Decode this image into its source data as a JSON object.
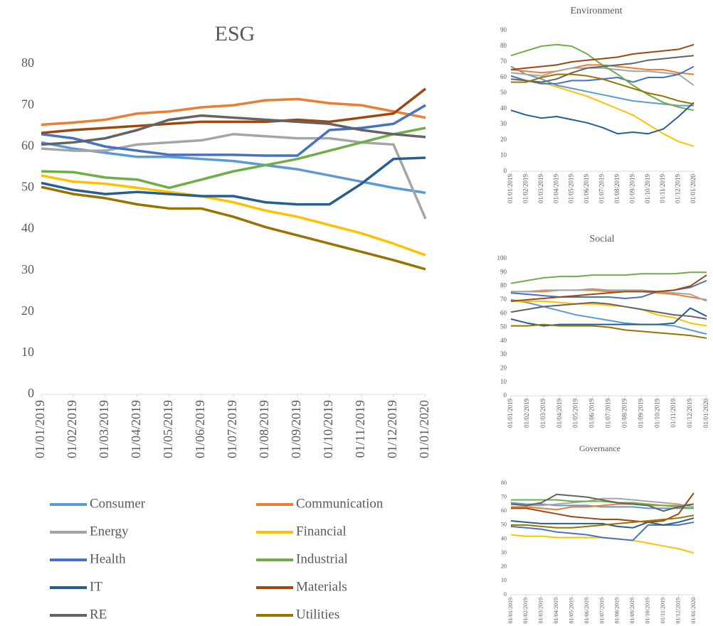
{
  "chart_data": [
    {
      "type": "line",
      "title": "ESG",
      "categories": [
        "01/01/2019",
        "01/02/2019",
        "01/03/2019",
        "01/04/2019",
        "01/05/2019",
        "01/06/2019",
        "01/07/2019",
        "01/08/2019",
        "01/09/2019",
        "01/10/2019",
        "01/11/2019",
        "01/12/2019",
        "01/01/2020"
      ],
      "ylim": [
        0,
        80
      ],
      "yticks": [
        0,
        10,
        20,
        30,
        40,
        50,
        60,
        70,
        80
      ],
      "series": [
        {
          "name": "Consumer",
          "color": "#5b9bd5",
          "values": [
            61,
            59.5,
            58.5,
            57.5,
            57.5,
            57,
            56.5,
            55.5,
            54.5,
            53,
            51.5,
            50,
            48.8
          ]
        },
        {
          "name": "Communication",
          "color": "#ed7d31",
          "values": [
            65.3,
            65.8,
            66.5,
            68,
            68.5,
            69.5,
            70,
            71.2,
            71.5,
            70.5,
            70,
            68.5,
            67
          ]
        },
        {
          "name": "Energy",
          "color": "#a5a5a5",
          "values": [
            59.5,
            59,
            59,
            60.5,
            61,
            61.5,
            63,
            62.5,
            62,
            62,
            61,
            60.5,
            42.5
          ]
        },
        {
          "name": "Financial",
          "color": "#ffc000",
          "values": [
            53,
            51.5,
            51,
            50,
            49,
            48,
            46.5,
            44.5,
            43,
            41,
            39,
            36.5,
            33.7
          ]
        },
        {
          "name": "Health",
          "color": "#4472c4",
          "values": [
            63,
            62,
            60,
            59,
            58,
            58,
            58,
            57.8,
            57.8,
            64,
            64.5,
            65.5,
            70
          ]
        },
        {
          "name": "Industrial",
          "color": "#70ad47",
          "values": [
            54,
            53.8,
            52.5,
            52,
            50,
            52,
            54,
            55.5,
            57,
            59,
            61,
            63,
            64.5
          ]
        },
        {
          "name": "IT",
          "color": "#255e91",
          "values": [
            51.2,
            49.5,
            48.5,
            49,
            48.5,
            48,
            48,
            46.5,
            46,
            46,
            51,
            57,
            57.3
          ]
        },
        {
          "name": "Materials",
          "color": "#9e480e",
          "values": [
            63.3,
            64,
            64.5,
            65,
            65.5,
            66,
            66,
            66,
            66.5,
            66,
            67,
            68,
            74
          ]
        },
        {
          "name": "RE",
          "color": "#636363",
          "values": [
            60.5,
            61,
            62,
            64,
            66.5,
            67.5,
            67,
            66.5,
            66,
            65.5,
            64,
            63,
            62.3
          ]
        },
        {
          "name": "Utilities",
          "color": "#997300",
          "values": [
            50.2,
            48.5,
            47.5,
            46,
            45,
            45,
            43,
            40.5,
            38.5,
            36.5,
            34.5,
            32.5,
            30.3
          ]
        }
      ]
    },
    {
      "type": "line",
      "title": "Environment",
      "categories": [
        "01/01/2019",
        "01/02/2019",
        "01/03/2019",
        "01/04/2019",
        "01/05/2019",
        "01/06/2019",
        "01/07/2019",
        "01/08/2019",
        "01/09/2019",
        "01/10/2019",
        "01/11/2019",
        "01/12/2019",
        "01/01/2020"
      ],
      "ylim": [
        0,
        90
      ],
      "yticks": [
        0,
        10,
        20,
        30,
        40,
        50,
        60,
        70,
        80,
        90
      ],
      "series": [
        {
          "color": "#5b9bd5",
          "values": [
            67,
            62,
            59,
            55,
            53,
            51,
            49,
            47,
            45,
            44,
            43,
            42,
            42
          ]
        },
        {
          "color": "#ed7d31",
          "values": [
            65,
            64,
            63,
            64,
            66,
            68,
            68,
            67,
            66,
            65,
            65,
            63,
            62
          ]
        },
        {
          "color": "#a5a5a5",
          "values": [
            63,
            62,
            61,
            64,
            66,
            66,
            66,
            65,
            64,
            64,
            63,
            62,
            55
          ]
        },
        {
          "color": "#ffc000",
          "values": [
            61,
            58,
            57,
            54,
            51,
            48,
            44,
            40,
            36,
            30,
            24,
            19,
            16
          ]
        },
        {
          "color": "#4472c4",
          "values": [
            61,
            58,
            56,
            56,
            58,
            58,
            59,
            60,
            57,
            60,
            60,
            62,
            67
          ]
        },
        {
          "color": "#70ad47",
          "values": [
            74,
            77,
            80,
            81,
            80,
            75,
            68,
            62,
            55,
            49,
            44,
            41,
            39
          ]
        },
        {
          "color": "#255e91",
          "values": [
            39,
            36,
            34,
            35,
            33,
            31,
            28,
            24,
            25,
            24,
            27,
            35,
            44
          ]
        },
        {
          "color": "#9e480e",
          "values": [
            65,
            66,
            67,
            68,
            70,
            71,
            72,
            73,
            75,
            76,
            77,
            78,
            81
          ]
        },
        {
          "color": "#636363",
          "values": [
            59,
            58,
            57,
            59,
            63,
            66,
            67,
            68,
            69,
            71,
            72,
            73,
            74
          ]
        },
        {
          "color": "#997300",
          "values": [
            57,
            57,
            60,
            62,
            62,
            61,
            59,
            56,
            53,
            50,
            48,
            45,
            43
          ]
        }
      ]
    },
    {
      "type": "line",
      "title": "Social",
      "categories": [
        "01/01/2019",
        "01/02/2019",
        "01/03/2019",
        "01/04/2019",
        "01/05/2019",
        "01/06/2019",
        "01/07/2019",
        "01/08/2019",
        "01/09/2019",
        "01/10/2019",
        "01/11/2019",
        "01/12/2019",
        "01/01/2020"
      ],
      "ylim": [
        0,
        100
      ],
      "yticks": [
        0,
        10,
        20,
        30,
        40,
        50,
        60,
        70,
        80,
        90,
        100
      ],
      "series": [
        {
          "color": "#5b9bd5",
          "values": [
            70,
            68,
            65,
            62,
            59,
            57,
            55,
            53,
            52,
            52,
            51,
            48,
            45
          ]
        },
        {
          "color": "#ed7d31",
          "values": [
            76,
            76,
            76,
            77,
            77,
            77,
            76,
            76,
            76,
            75,
            74,
            72,
            70
          ]
        },
        {
          "color": "#a5a5a5",
          "values": [
            76,
            76,
            77,
            77,
            77,
            78,
            77,
            77,
            77,
            76,
            75,
            74,
            69
          ]
        },
        {
          "color": "#ffc000",
          "values": [
            69,
            69,
            69,
            68,
            67,
            67,
            66,
            65,
            63,
            59,
            57,
            53,
            51
          ]
        },
        {
          "color": "#4472c4",
          "values": [
            75,
            74,
            73,
            72,
            72,
            72,
            72,
            71,
            72,
            76,
            77,
            79,
            84
          ]
        },
        {
          "color": "#70ad47",
          "values": [
            82,
            84,
            86,
            87,
            87,
            88,
            88,
            88,
            89,
            89,
            89,
            90,
            90
          ]
        },
        {
          "color": "#255e91",
          "values": [
            56,
            53,
            51,
            52,
            52,
            52,
            52,
            52,
            52,
            52,
            53,
            64,
            58
          ]
        },
        {
          "color": "#9e480e",
          "values": [
            69,
            70,
            71,
            72,
            73,
            74,
            75,
            76,
            76,
            76,
            77,
            80,
            88
          ]
        },
        {
          "color": "#636363",
          "values": [
            61,
            63,
            65,
            66,
            67,
            68,
            67,
            65,
            63,
            61,
            59,
            58,
            56
          ]
        },
        {
          "color": "#997300",
          "values": [
            51,
            51,
            52,
            51,
            51,
            51,
            50,
            48,
            47,
            46,
            45,
            44,
            42
          ]
        }
      ]
    },
    {
      "type": "line",
      "title": "Governance",
      "categories": [
        "01/01/2019",
        "01/02/2019",
        "01/03/2019",
        "01/04/2019",
        "01/05/2019",
        "01/06/2019",
        "01/07/2019",
        "01/08/2019",
        "01/09/2019",
        "01/10/2019",
        "01/11/2019",
        "01/12/2019",
        "01/01/2020"
      ],
      "ylim": [
        0,
        80
      ],
      "yticks": [
        0,
        10,
        20,
        30,
        40,
        50,
        60,
        70,
        80
      ],
      "series": [
        {
          "color": "#5b9bd5",
          "values": [
            66,
            65,
            65,
            64,
            64,
            64,
            63,
            63,
            63,
            62,
            62,
            62,
            62
          ]
        },
        {
          "color": "#ed7d31",
          "values": [
            63,
            63,
            62,
            61,
            63,
            63,
            64,
            65,
            65,
            64,
            64,
            64,
            65
          ]
        },
        {
          "color": "#a5a5a5",
          "values": [
            65,
            64,
            64,
            65,
            66,
            67,
            69,
            69,
            68,
            67,
            66,
            65,
            63
          ]
        },
        {
          "color": "#ffc000",
          "values": [
            43,
            42,
            42,
            41,
            41,
            41,
            41,
            40,
            39,
            37,
            35,
            33,
            30
          ]
        },
        {
          "color": "#4472c4",
          "values": [
            49,
            48,
            47,
            45,
            44,
            43,
            41,
            40,
            39,
            50,
            50,
            50,
            52
          ]
        },
        {
          "color": "#70ad47",
          "values": [
            68,
            68,
            68,
            68,
            67,
            67,
            67,
            66,
            66,
            65,
            64,
            63,
            62
          ]
        },
        {
          "color": "#255e91",
          "values": [
            53,
            52,
            51,
            51,
            51,
            51,
            51,
            49,
            48,
            52,
            50,
            52,
            55
          ]
        },
        {
          "color": "#9e480e",
          "values": [
            62,
            62,
            60,
            58,
            56,
            55,
            54,
            54,
            53,
            52,
            53,
            58,
            73
          ]
        },
        {
          "color": "#636363",
          "values": [
            65,
            64,
            66,
            72,
            71,
            70,
            68,
            66,
            65,
            64,
            60,
            63,
            65
          ]
        },
        {
          "color": "#997300",
          "values": [
            50,
            50,
            49,
            48,
            48,
            49,
            50,
            51,
            52,
            53,
            54,
            55,
            57
          ]
        }
      ]
    }
  ]
}
